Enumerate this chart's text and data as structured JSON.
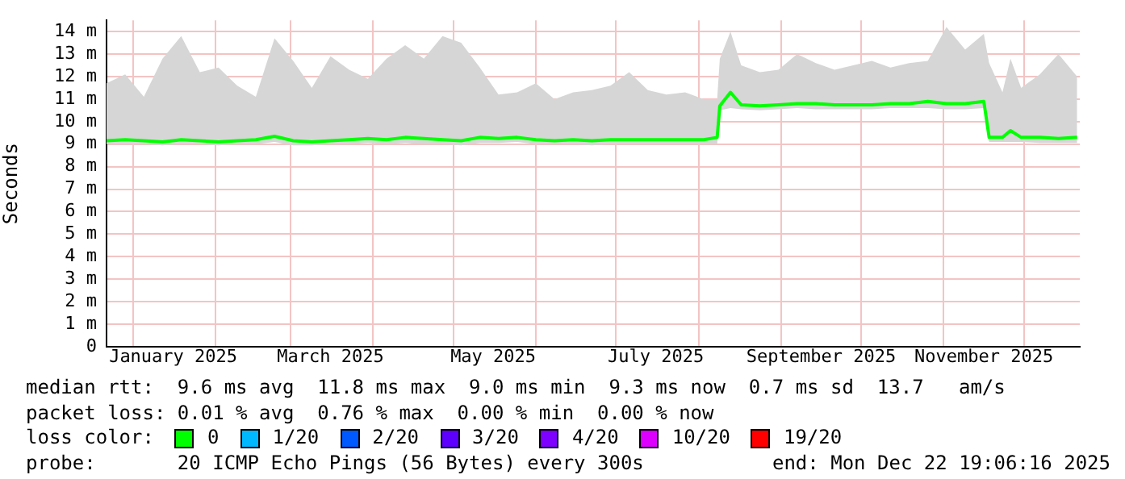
{
  "chart_data": {
    "type": "line",
    "ylabel": "Seconds",
    "legend": "bottom",
    "legend_title": "loss color:",
    "grid": true,
    "marker": "none",
    "line_style": "solid",
    "xlim": [
      "2024-12-22",
      "2025-12-22"
    ],
    "xticks": [
      {
        "value": "2025-01-01",
        "label": null
      },
      {
        "value": "2025-01-16",
        "label": "January 2025"
      },
      {
        "value": "2025-02-01",
        "label": null
      },
      {
        "value": "2025-03-01",
        "label": null
      },
      {
        "value": "2025-03-16",
        "label": "March 2025"
      },
      {
        "value": "2025-04-01",
        "label": null
      },
      {
        "value": "2025-05-01",
        "label": null
      },
      {
        "value": "2025-05-16",
        "label": "May 2025"
      },
      {
        "value": "2025-06-01",
        "label": null
      },
      {
        "value": "2025-07-01",
        "label": null
      },
      {
        "value": "2025-07-16",
        "label": "July 2025"
      },
      {
        "value": "2025-08-01",
        "label": null
      },
      {
        "value": "2025-09-01",
        "label": null
      },
      {
        "value": "2025-09-16",
        "label": "September 2025"
      },
      {
        "value": "2025-10-01",
        "label": null
      },
      {
        "value": "2025-11-01",
        "label": null
      },
      {
        "value": "2025-11-16",
        "label": "November 2025"
      },
      {
        "value": "2025-12-01",
        "label": null
      }
    ],
    "ylim": [
      0,
      14.5
    ],
    "yticks": [
      0,
      {
        "value": 1,
        "label": "1 m"
      },
      {
        "value": 2,
        "label": "2 m"
      },
      {
        "value": 3,
        "label": "3 m"
      },
      {
        "value": 4,
        "label": "4 m"
      },
      {
        "value": 5,
        "label": "5 m"
      },
      {
        "value": 6,
        "label": "6 m"
      },
      {
        "value": 7,
        "label": "7 m"
      },
      {
        "value": 8,
        "label": "8 m"
      },
      {
        "value": 9,
        "label": "9 m"
      },
      {
        "value": 10,
        "label": "10 m"
      },
      {
        "value": 11,
        "label": "11 m"
      },
      {
        "value": 12,
        "label": "12 m"
      },
      {
        "value": 13,
        "label": "13 m"
      },
      {
        "value": 14,
        "label": "14 m"
      }
    ],
    "x": [
      "2024-12-22",
      "2024-12-29",
      "2025-01-05",
      "2025-01-12",
      "2025-01-19",
      "2025-01-26",
      "2025-02-02",
      "2025-02-09",
      "2025-02-16",
      "2025-02-23",
      "2025-03-02",
      "2025-03-09",
      "2025-03-16",
      "2025-03-23",
      "2025-03-30",
      "2025-04-06",
      "2025-04-13",
      "2025-04-20",
      "2025-04-27",
      "2025-05-04",
      "2025-05-11",
      "2025-05-18",
      "2025-05-25",
      "2025-06-01",
      "2025-06-08",
      "2025-06-15",
      "2025-06-22",
      "2025-06-29",
      "2025-07-06",
      "2025-07-13",
      "2025-07-20",
      "2025-07-27",
      "2025-08-03",
      "2025-08-08",
      "2025-08-09",
      "2025-08-13",
      "2025-08-17",
      "2025-08-24",
      "2025-08-31",
      "2025-09-07",
      "2025-09-14",
      "2025-09-21",
      "2025-09-28",
      "2025-10-05",
      "2025-10-12",
      "2025-10-19",
      "2025-10-26",
      "2025-11-02",
      "2025-11-09",
      "2025-11-16",
      "2025-11-18",
      "2025-11-23",
      "2025-11-26",
      "2025-11-30",
      "2025-12-07",
      "2025-12-14",
      "2025-12-21"
    ],
    "series": [
      {
        "name": "0",
        "color": "#00ff00",
        "values": [
          9.15,
          9.2,
          9.15,
          9.1,
          9.2,
          9.15,
          9.1,
          9.15,
          9.2,
          9.35,
          9.15,
          9.1,
          9.15,
          9.2,
          9.25,
          9.2,
          9.3,
          9.25,
          9.2,
          9.15,
          9.3,
          9.25,
          9.3,
          9.2,
          9.15,
          9.2,
          9.15,
          9.2,
          9.2,
          9.2,
          9.2,
          9.2,
          9.2,
          9.3,
          10.7,
          11.3,
          10.75,
          10.7,
          10.75,
          10.8,
          10.8,
          10.75,
          10.75,
          10.75,
          10.8,
          10.8,
          10.9,
          10.8,
          10.8,
          10.9,
          9.3,
          9.3,
          9.6,
          9.3,
          9.3,
          9.25,
          9.3
        ],
        "lower": [
          9.0,
          9.0,
          9.0,
          8.95,
          9.0,
          9.0,
          8.95,
          9.0,
          9.0,
          9.1,
          8.95,
          8.95,
          9.0,
          9.0,
          9.05,
          9.0,
          9.05,
          9.0,
          9.0,
          8.95,
          9.05,
          9.05,
          9.1,
          9.0,
          9.0,
          9.0,
          8.95,
          9.0,
          9.0,
          9.0,
          9.0,
          9.0,
          9.0,
          9.0,
          10.5,
          10.6,
          10.55,
          10.5,
          10.55,
          10.6,
          10.55,
          10.55,
          10.55,
          10.55,
          10.6,
          10.6,
          10.6,
          10.55,
          10.55,
          10.6,
          9.1,
          9.1,
          9.1,
          9.1,
          9.05,
          9.05,
          9.05
        ],
        "upper": [
          11.7,
          12.1,
          11.1,
          12.8,
          13.8,
          12.2,
          12.4,
          11.6,
          11.1,
          13.7,
          12.7,
          11.5,
          12.9,
          12.3,
          11.9,
          12.8,
          13.4,
          12.8,
          13.8,
          13.5,
          12.4,
          11.2,
          11.3,
          11.7,
          11.0,
          11.3,
          11.4,
          11.6,
          12.2,
          11.4,
          11.2,
          11.3,
          11.0,
          11.0,
          12.8,
          14.0,
          12.5,
          12.2,
          12.3,
          13.0,
          12.6,
          12.3,
          12.5,
          12.7,
          12.4,
          12.6,
          12.7,
          14.2,
          13.2,
          13.9,
          12.6,
          11.3,
          12.8,
          11.5,
          12.1,
          13.0,
          12.0
        ]
      },
      {
        "name": "1/20",
        "color": "#00b8ff",
        "values": [
          null,
          null,
          null,
          null,
          null,
          null,
          null,
          null,
          null,
          null,
          null,
          null,
          null,
          null,
          null,
          null,
          null,
          null,
          null,
          null,
          null,
          null,
          null,
          null,
          null,
          null,
          null,
          null,
          null,
          null,
          null,
          null,
          null,
          null,
          null,
          null,
          null,
          null,
          null,
          null,
          null,
          null,
          null,
          null,
          null,
          null,
          null,
          null,
          null,
          null,
          null,
          null,
          null,
          null,
          null,
          null,
          null
        ]
      },
      {
        "name": "2/20",
        "color": "#0059ff",
        "values": [
          null,
          null,
          null,
          null,
          null,
          null,
          null,
          null,
          null,
          null,
          null,
          null,
          null,
          null,
          null,
          null,
          null,
          null,
          null,
          null,
          null,
          null,
          null,
          null,
          null,
          null,
          null,
          null,
          null,
          null,
          null,
          null,
          null,
          null,
          null,
          null,
          null,
          null,
          null,
          null,
          null,
          null,
          null,
          null,
          null,
          null,
          null,
          null,
          null,
          null,
          null,
          null,
          null,
          null,
          null,
          null,
          null
        ]
      },
      {
        "name": "3/20",
        "color": "#5e00ff",
        "values": [
          null,
          null,
          null,
          null,
          null,
          null,
          null,
          null,
          null,
          null,
          null,
          null,
          null,
          null,
          null,
          null,
          null,
          null,
          null,
          null,
          null,
          null,
          null,
          null,
          null,
          null,
          null,
          null,
          null,
          null,
          null,
          null,
          null,
          null,
          null,
          null,
          null,
          null,
          null,
          null,
          null,
          null,
          null,
          null,
          null,
          null,
          null,
          null,
          null,
          null,
          null,
          null,
          null,
          null,
          null,
          null,
          null
        ]
      },
      {
        "name": "4/20",
        "color": "#7e00ff",
        "values": [
          null,
          null,
          null,
          null,
          null,
          null,
          null,
          null,
          null,
          null,
          null,
          null,
          null,
          null,
          null,
          null,
          null,
          null,
          null,
          null,
          null,
          null,
          null,
          null,
          null,
          null,
          null,
          null,
          null,
          null,
          null,
          null,
          null,
          null,
          null,
          null,
          null,
          null,
          null,
          null,
          null,
          null,
          null,
          null,
          null,
          null,
          null,
          null,
          null,
          null,
          null,
          null,
          null,
          null,
          null,
          null,
          null
        ]
      },
      {
        "name": "10/20",
        "color": "#dd00ff",
        "values": [
          null,
          null,
          null,
          null,
          null,
          null,
          null,
          null,
          null,
          null,
          null,
          null,
          null,
          null,
          null,
          null,
          null,
          null,
          null,
          null,
          null,
          null,
          null,
          null,
          null,
          null,
          null,
          null,
          null,
          null,
          null,
          null,
          null,
          null,
          null,
          null,
          null,
          null,
          null,
          null,
          null,
          null,
          null,
          null,
          null,
          null,
          null,
          null,
          null,
          null,
          null,
          null,
          null,
          null,
          null,
          null,
          null
        ]
      },
      {
        "name": "19/20",
        "color": "#ff0000",
        "values": [
          null,
          null,
          null,
          null,
          null,
          null,
          null,
          null,
          null,
          null,
          null,
          null,
          null,
          null,
          null,
          null,
          null,
          null,
          null,
          null,
          null,
          null,
          null,
          null,
          null,
          null,
          null,
          null,
          null,
          null,
          null,
          null,
          null,
          null,
          null,
          null,
          null,
          null,
          null,
          null,
          null,
          null,
          null,
          null,
          null,
          null,
          null,
          null,
          null,
          null,
          null,
          null,
          null,
          null,
          null,
          null,
          null
        ]
      }
    ],
    "annotations": [
      "median rtt:  9.6 ms avg  11.8 ms max  9.0 ms min  9.3 ms now  0.7 ms sd  13.7   am/s",
      "packet loss: 0.01 % avg  0.76 % max  0.00 % min  0.00 % now",
      "probe:       20 ICMP Echo Pings (56 Bytes) every 300s",
      "end: Mon Dec 22 19:06:16 2025"
    ]
  }
}
